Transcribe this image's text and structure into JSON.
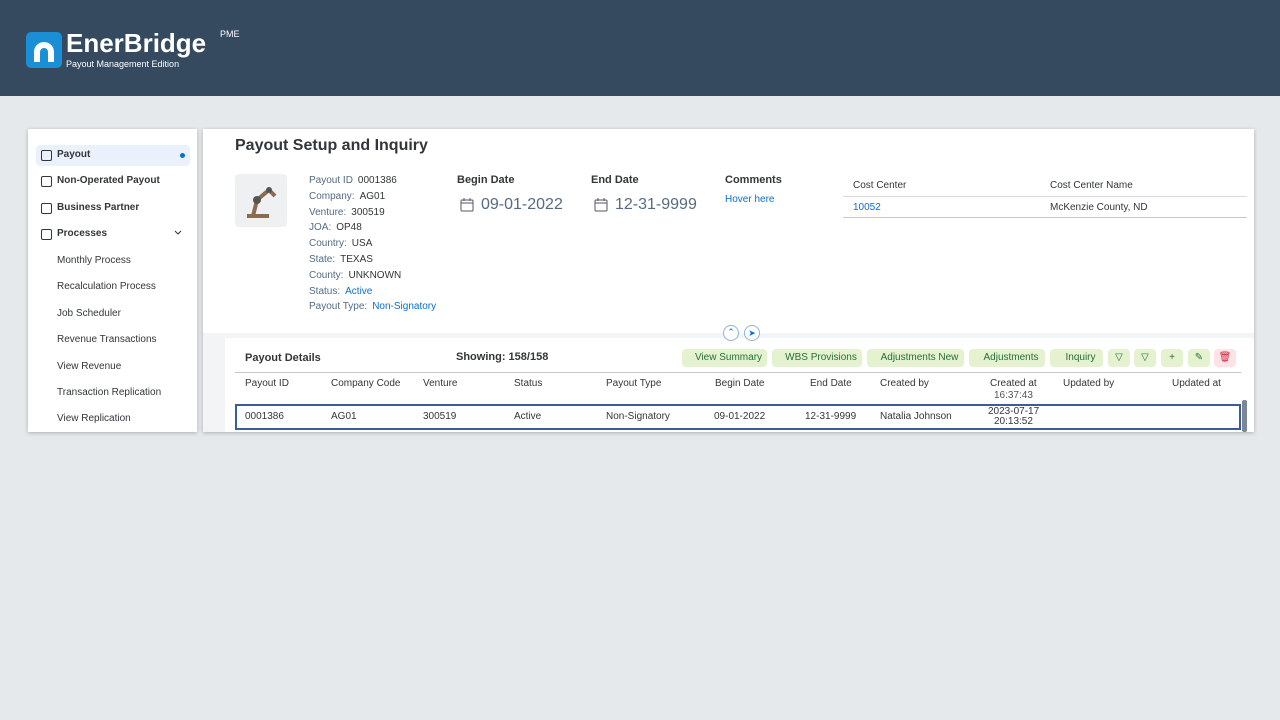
{
  "header": {
    "brand": "EnerBridge",
    "badge": "PME",
    "tagline": "Payout Management Edition"
  },
  "nav": {
    "items": [
      "Payout",
      "Non-Operated Payout",
      "Business Partner",
      "Processes"
    ],
    "subitems": [
      "Monthly Process",
      "Recalculation Process",
      "Job Scheduler",
      "Revenue Transactions",
      "View Revenue",
      "Transaction Replication",
      "View Replication"
    ]
  },
  "page": {
    "title": "Payout Setup and Inquiry"
  },
  "info": {
    "fields": [
      [
        "Payout ID",
        "0001386"
      ],
      [
        "Company:",
        "AG01"
      ],
      [
        "Venture:",
        "300519"
      ],
      [
        "JOA:",
        "OP48"
      ],
      [
        "Country:",
        "USA"
      ],
      [
        "State:",
        "TEXAS"
      ],
      [
        "County:",
        "UNKNOWN"
      ],
      [
        "Status:",
        "Active"
      ],
      [
        "Payout Type:",
        "Non-Signatory"
      ]
    ]
  },
  "dates": {
    "begin_label": "Begin Date",
    "begin_value": "09-01-2022",
    "end_label": "End Date",
    "end_value": "12-31-9999"
  },
  "comments": {
    "label": "Comments",
    "link": "Hover here"
  },
  "cost_center": {
    "headers": [
      "Cost Center",
      "Cost Center Name"
    ],
    "row": [
      "10052",
      "McKenzie County, ND"
    ]
  },
  "details": {
    "title": "Payout Details",
    "showing": "Showing: 158/158",
    "buttons": [
      "View Summary",
      "WBS Provisions",
      "Adjustments New",
      "Adjustments",
      "Inquiry"
    ],
    "columns": [
      "Payout ID",
      "Company Code",
      "Venture",
      "Status",
      "Payout Type",
      "Begin Date",
      "End Date",
      "Created by",
      "Created at",
      "Updated by",
      "Updated at"
    ],
    "prev_row_partial": "16:37:43",
    "row": [
      "0001386",
      "AG01",
      "300519",
      "Active",
      "Non-Signatory",
      "09-01-2022",
      "12-31-9999",
      "Natalia Johnson"
    ],
    "row_created_at": [
      "2023-07-17",
      "20:13:52"
    ]
  }
}
